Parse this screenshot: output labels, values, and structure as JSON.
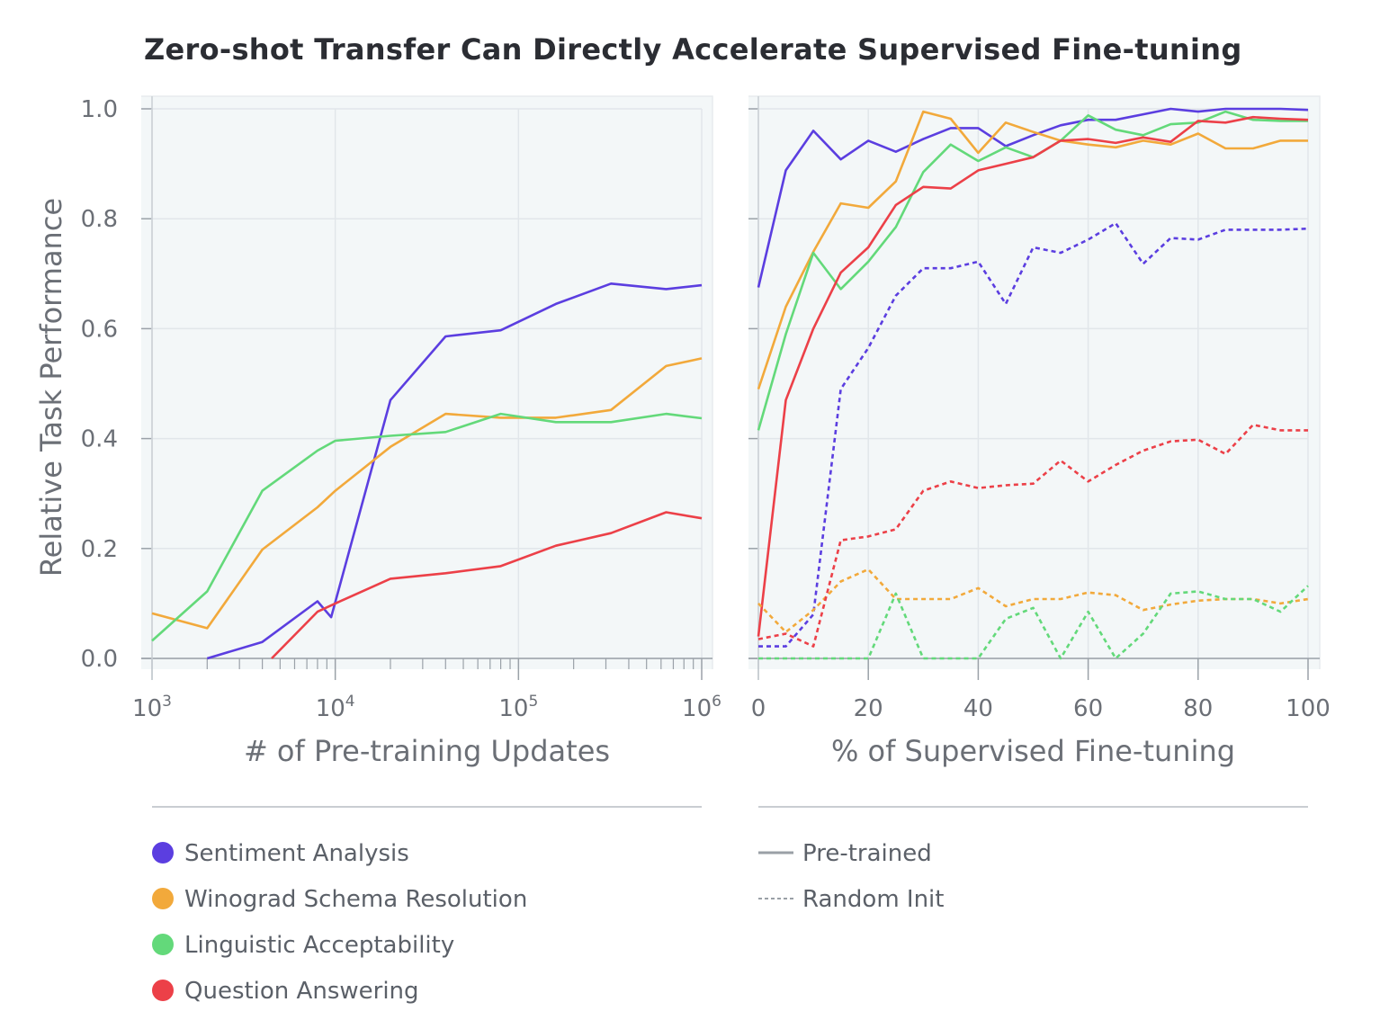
{
  "title": "Zero-shot Transfer Can Directly Accelerate Supervised Fine-tuning",
  "colors": {
    "sentiment": "#5b3ee0",
    "winograd": "#f2a93b",
    "linguistic": "#63d97a",
    "qa": "#ec4048",
    "plot_bg": "#f3f7f8",
    "grid": "#e1e6ea",
    "axis": "#9aa1a8",
    "text": "#6b6f76"
  },
  "legend": {
    "tasks": [
      {
        "label": "Sentiment Analysis",
        "color_key": "sentiment"
      },
      {
        "label": "Winograd Schema Resolution",
        "color_key": "winograd"
      },
      {
        "label": "Linguistic Acceptability",
        "color_key": "linguistic"
      },
      {
        "label": "Question Answering",
        "color_key": "qa"
      }
    ],
    "styles": [
      {
        "label": "Pre-trained",
        "dash": "solid"
      },
      {
        "label": "Random Init",
        "dash": "dashed"
      }
    ]
  },
  "chart_data": [
    {
      "type": "line",
      "xscale": "log",
      "xlabel": "# of Pre-training Updates",
      "ylabel": "Relative Task Performance",
      "xlim": [
        1000,
        1000000
      ],
      "ylim": [
        0,
        1.0
      ],
      "xticks": [
        {
          "value": 1000,
          "base": "10",
          "exp": "3"
        },
        {
          "value": 10000,
          "base": "10",
          "exp": "4"
        },
        {
          "value": 100000,
          "base": "10",
          "exp": "5"
        },
        {
          "value": 1000000,
          "base": "10",
          "exp": "6"
        }
      ],
      "yticks": [
        0.0,
        0.2,
        0.4,
        0.6,
        0.8,
        1.0
      ],
      "ytick_labels": [
        "0.0",
        "0.2",
        "0.4",
        "0.6",
        "0.8",
        "1.0"
      ],
      "grid": true,
      "series": [
        {
          "name": "Sentiment Analysis",
          "color_key": "sentiment",
          "dash": "solid",
          "x": [
            2000,
            4000,
            8000,
            9500,
            20000,
            40000,
            80000,
            160000,
            320000,
            640000,
            1000000
          ],
          "y": [
            0.0,
            0.03,
            0.104,
            0.075,
            0.47,
            0.586,
            0.597,
            0.645,
            0.682,
            0.672,
            0.679
          ]
        },
        {
          "name": "Winograd Schema Resolution",
          "color_key": "winograd",
          "dash": "solid",
          "x": [
            1000,
            2000,
            4000,
            8000,
            10000,
            20000,
            40000,
            80000,
            160000,
            320000,
            640000,
            1000000
          ],
          "y": [
            0.082,
            0.055,
            0.198,
            0.275,
            0.305,
            0.385,
            0.445,
            0.438,
            0.438,
            0.452,
            0.532,
            0.546
          ]
        },
        {
          "name": "Linguistic Acceptability",
          "color_key": "linguistic",
          "dash": "solid",
          "x": [
            1000,
            2000,
            4000,
            8000,
            10000,
            20000,
            40000,
            80000,
            160000,
            320000,
            640000,
            1000000
          ],
          "y": [
            0.032,
            0.122,
            0.305,
            0.378,
            0.396,
            0.405,
            0.412,
            0.445,
            0.43,
            0.43,
            0.445,
            0.437
          ]
        },
        {
          "name": "Question Answering",
          "color_key": "qa",
          "dash": "solid",
          "x": [
            4500,
            8000,
            10000,
            20000,
            40000,
            80000,
            160000,
            320000,
            640000,
            1000000
          ],
          "y": [
            0.0,
            0.085,
            0.1,
            0.145,
            0.155,
            0.168,
            0.205,
            0.228,
            0.266,
            0.255
          ]
        }
      ]
    },
    {
      "type": "line",
      "xlabel": "% of Supervised Fine-tuning",
      "xlim": [
        0,
        100
      ],
      "ylim": [
        0,
        1.0
      ],
      "xticks": [
        0,
        20,
        40,
        60,
        80,
        100
      ],
      "yticks": [
        0.0,
        0.2,
        0.4,
        0.6,
        0.8,
        1.0
      ],
      "grid": true,
      "series": [
        {
          "name": "Sentiment Analysis",
          "color_key": "sentiment",
          "dash": "solid",
          "x": [
            0,
            5,
            10,
            15,
            20,
            25,
            30,
            35,
            40,
            45,
            50,
            55,
            60,
            65,
            70,
            75,
            80,
            85,
            90,
            95,
            100
          ],
          "y": [
            0.675,
            0.888,
            0.96,
            0.908,
            0.942,
            0.922,
            0.945,
            0.965,
            0.965,
            0.932,
            0.952,
            0.97,
            0.98,
            0.98,
            0.99,
            1.0,
            0.995,
            1.0,
            1.0,
            1.0,
            0.998
          ]
        },
        {
          "name": "Winograd Schema Resolution",
          "color_key": "winograd",
          "dash": "solid",
          "x": [
            0,
            5,
            10,
            15,
            20,
            25,
            30,
            35,
            40,
            45,
            50,
            55,
            60,
            65,
            70,
            75,
            80,
            85,
            90,
            95,
            100
          ],
          "y": [
            0.49,
            0.64,
            0.74,
            0.828,
            0.82,
            0.868,
            0.995,
            0.982,
            0.92,
            0.975,
            0.958,
            0.942,
            0.935,
            0.93,
            0.942,
            0.935,
            0.955,
            0.928,
            0.928,
            0.942,
            0.942
          ]
        },
        {
          "name": "Linguistic Acceptability",
          "color_key": "linguistic",
          "dash": "solid",
          "x": [
            0,
            5,
            10,
            15,
            20,
            25,
            30,
            35,
            40,
            45,
            50,
            55,
            60,
            65,
            70,
            75,
            80,
            85,
            90,
            95,
            100
          ],
          "y": [
            0.415,
            0.59,
            0.738,
            0.672,
            0.722,
            0.785,
            0.885,
            0.935,
            0.905,
            0.93,
            0.912,
            0.942,
            0.988,
            0.962,
            0.952,
            0.972,
            0.975,
            0.995,
            0.98,
            0.978,
            0.978
          ]
        },
        {
          "name": "Question Answering",
          "color_key": "qa",
          "dash": "solid",
          "x": [
            0,
            5,
            10,
            15,
            20,
            25,
            30,
            35,
            40,
            45,
            50,
            55,
            60,
            65,
            70,
            75,
            80,
            85,
            90,
            95,
            100
          ],
          "y": [
            0.04,
            0.47,
            0.6,
            0.702,
            0.748,
            0.825,
            0.858,
            0.855,
            0.888,
            0.9,
            0.912,
            0.942,
            0.945,
            0.938,
            0.948,
            0.94,
            0.978,
            0.975,
            0.985,
            0.982,
            0.98
          ]
        },
        {
          "name": "Sentiment Analysis",
          "color_key": "sentiment",
          "dash": "dashed",
          "x": [
            0,
            5,
            10,
            15,
            20,
            25,
            30,
            35,
            40,
            45,
            50,
            55,
            60,
            65,
            70,
            75,
            80,
            85,
            90,
            95,
            100
          ],
          "y": [
            0.022,
            0.022,
            0.08,
            0.49,
            0.565,
            0.66,
            0.71,
            0.71,
            0.722,
            0.645,
            0.748,
            0.738,
            0.762,
            0.792,
            0.718,
            0.765,
            0.762,
            0.78,
            0.78,
            0.78,
            0.782
          ]
        },
        {
          "name": "Winograd Schema Resolution",
          "color_key": "winograd",
          "dash": "dashed",
          "x": [
            0,
            5,
            10,
            15,
            20,
            25,
            30,
            35,
            40,
            45,
            50,
            55,
            60,
            65,
            70,
            75,
            80,
            85,
            90,
            95,
            100
          ],
          "y": [
            0.1,
            0.048,
            0.088,
            0.14,
            0.162,
            0.108,
            0.108,
            0.108,
            0.128,
            0.095,
            0.108,
            0.108,
            0.12,
            0.115,
            0.088,
            0.098,
            0.105,
            0.108,
            0.108,
            0.1,
            0.108
          ]
        },
        {
          "name": "Linguistic Acceptability",
          "color_key": "linguistic",
          "dash": "dashed",
          "x": [
            0,
            5,
            10,
            15,
            20,
            25,
            30,
            35,
            40,
            45,
            50,
            55,
            60,
            65,
            70,
            75,
            80,
            85,
            90,
            95,
            100
          ],
          "y": [
            0.0,
            0.0,
            0.0,
            0.0,
            0.0,
            0.118,
            0.0,
            0.0,
            0.0,
            0.072,
            0.092,
            0.0,
            0.085,
            0.0,
            0.045,
            0.118,
            0.122,
            0.108,
            0.108,
            0.085,
            0.132
          ]
        },
        {
          "name": "Question Answering",
          "color_key": "qa",
          "dash": "dashed",
          "x": [
            0,
            5,
            10,
            15,
            20,
            25,
            30,
            35,
            40,
            45,
            50,
            55,
            60,
            65,
            70,
            75,
            80,
            85,
            90,
            95,
            100
          ],
          "y": [
            0.035,
            0.045,
            0.022,
            0.215,
            0.222,
            0.235,
            0.305,
            0.322,
            0.31,
            0.315,
            0.318,
            0.36,
            0.322,
            0.352,
            0.378,
            0.395,
            0.398,
            0.372,
            0.425,
            0.415,
            0.415
          ]
        }
      ]
    }
  ]
}
